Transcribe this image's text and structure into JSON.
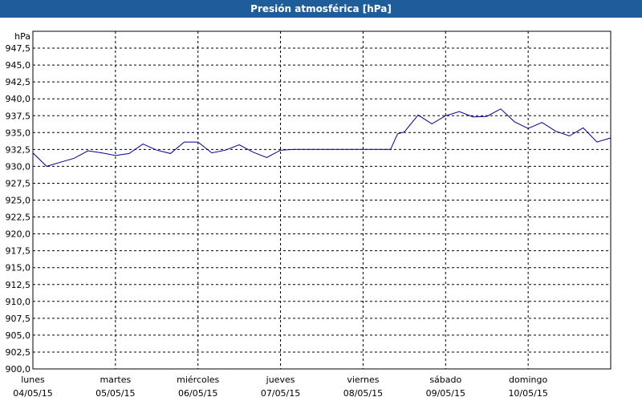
{
  "window": {
    "title": "Presión atmosférica [hPa]"
  },
  "colors": {
    "title_bar": "#1f5c9a",
    "series": "#00008b",
    "grid": "#000000"
  },
  "chart_data": {
    "type": "line",
    "title": "Presión atmosférica [hPa]",
    "y_unit": "hPa",
    "ylim": [
      900,
      950
    ],
    "xlim": [
      "04/05/15 00:00",
      "11/05/15 00:00"
    ],
    "grid": true,
    "y_ticks": [
      "947,5",
      "945,0",
      "942,5",
      "940,0",
      "937,5",
      "935,0",
      "932,5",
      "930,0",
      "927,5",
      "925,0",
      "922,5",
      "920,0",
      "917,5",
      "915,0",
      "912,5",
      "910,0",
      "907,5",
      "905,0",
      "902,5",
      "900,0"
    ],
    "x_ticks": [
      {
        "day": "lunes",
        "date": "04/05/15"
      },
      {
        "day": "martes",
        "date": "05/05/15"
      },
      {
        "day": "miércoles",
        "date": "06/05/15"
      },
      {
        "day": "jueves",
        "date": "07/05/15"
      },
      {
        "day": "viernes",
        "date": "08/05/15"
      },
      {
        "day": "sábado",
        "date": "09/05/15"
      },
      {
        "day": "domingo",
        "date": "10/05/15"
      }
    ],
    "series": [
      {
        "x_hours": [
          0,
          4,
          8,
          12,
          16,
          20,
          24,
          28,
          32,
          36,
          40,
          44,
          48,
          52,
          56,
          60,
          64,
          68,
          72,
          76,
          80,
          84,
          88,
          92,
          96,
          100,
          104,
          106,
          108,
          112,
          116,
          120,
          124,
          128,
          132,
          136,
          140,
          144,
          148,
          152,
          156,
          160,
          164,
          168
        ],
        "values": [
          932.0,
          930.0,
          930.6,
          931.2,
          932.3,
          932.0,
          931.6,
          931.9,
          933.3,
          932.4,
          931.9,
          933.6,
          933.6,
          932.0,
          932.4,
          933.2,
          932.1,
          931.3,
          932.4,
          932.5,
          932.5,
          932.5,
          932.5,
          932.5,
          932.5,
          932.5,
          932.5,
          934.8,
          935.1,
          937.6,
          936.3,
          937.5,
          938.1,
          937.3,
          937.4,
          938.5,
          936.6,
          935.6,
          936.5,
          935.2,
          934.5,
          935.7,
          933.6,
          934.2
        ]
      }
    ]
  }
}
